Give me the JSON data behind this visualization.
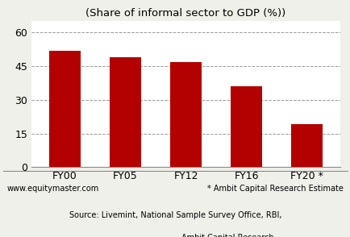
{
  "categories": [
    "FY00",
    "FY05",
    "FY12",
    "FY16",
    "FY20 *"
  ],
  "values": [
    52,
    49,
    47,
    36,
    19
  ],
  "bar_color": "#b30000",
  "title": "(Share of informal sector to GDP (%))",
  "title_fontsize": 9.5,
  "ylim": [
    0,
    65
  ],
  "yticks": [
    0,
    15,
    30,
    45,
    60
  ],
  "grid_color": "#999999",
  "background_color": "#f0f0ea",
  "plot_bg_color": "#ffffff",
  "footer_left": "www.equitymaster.com",
  "footer_right": "* Ambit Capital Research Estimate",
  "footer_source": "Source: Livemint, National Sample Survey Office, RBI,\n                                     Ambit Capital Research",
  "footer_fontsize": 7.0,
  "tick_fontsize": 9
}
